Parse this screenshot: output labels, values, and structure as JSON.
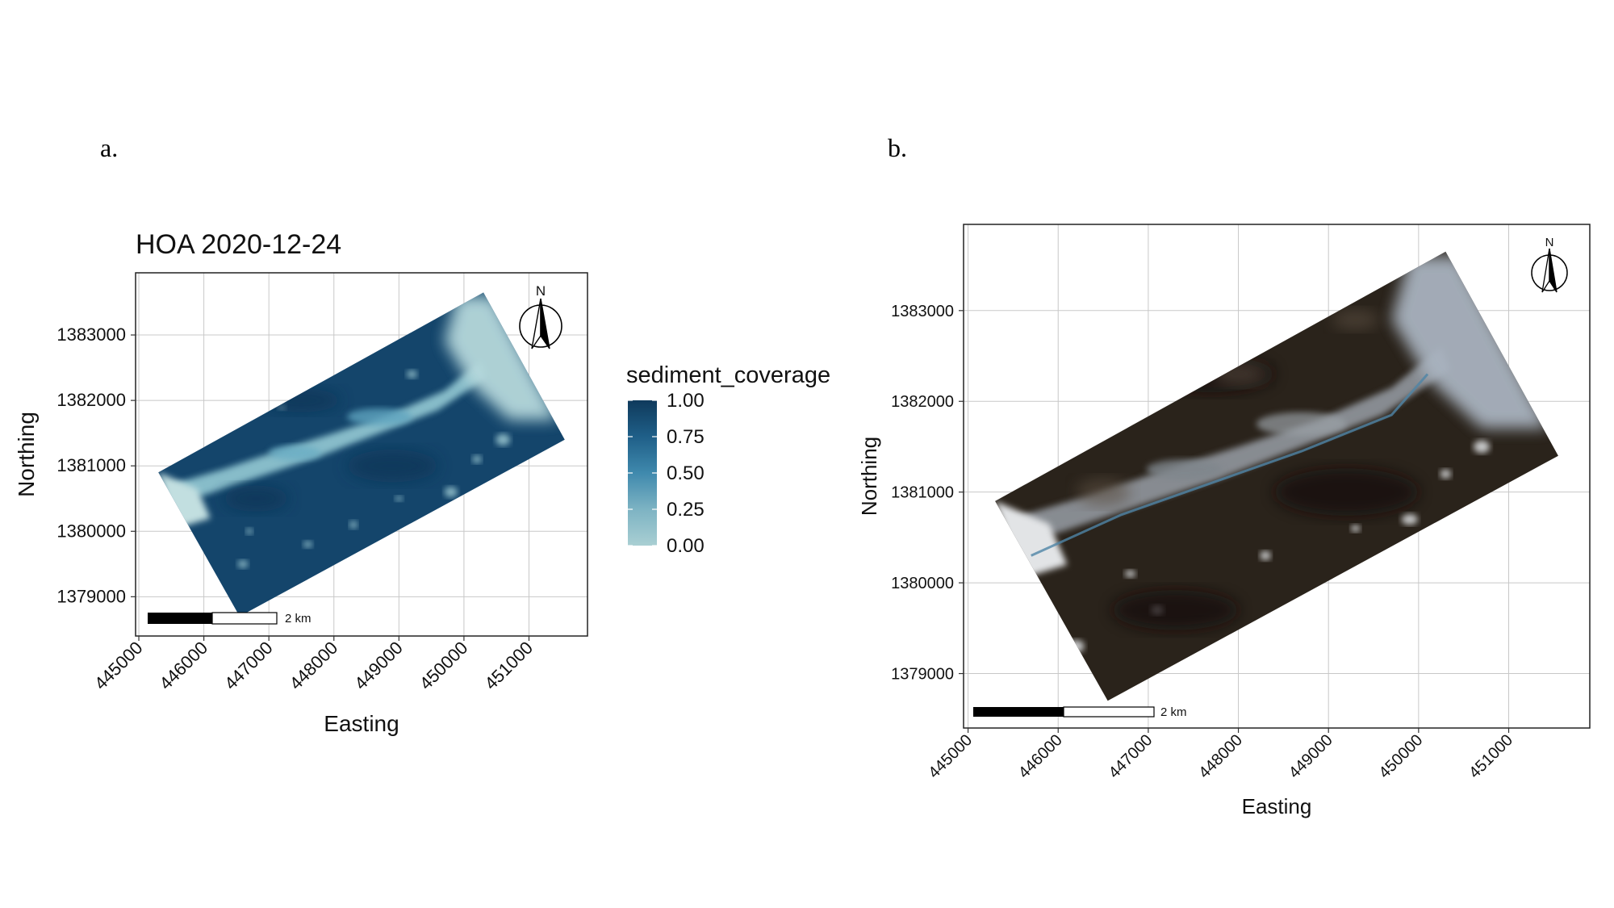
{
  "figure": {
    "panel_a_label": "a.",
    "panel_b_label": "b."
  },
  "chart_data": [
    {
      "type": "heatmap",
      "panel": "a.",
      "title": "HOA 2020-12-24",
      "xlabel": "Easting",
      "ylabel": "Northing",
      "x_ticks": [
        445000,
        446000,
        447000,
        448000,
        449000,
        450000,
        451000
      ],
      "y_ticks": [
        1379000,
        1380000,
        1381000,
        1382000,
        1383000
      ],
      "xlim": [
        444950,
        451900
      ],
      "ylim": [
        1378400,
        1383950
      ],
      "grid": true,
      "legend": {
        "title": "sediment_coverage",
        "position": "right",
        "ticks": [
          "1.00",
          "0.75",
          "0.50",
          "0.25",
          "0.00"
        ],
        "range": [
          0,
          1
        ],
        "colors": [
          "#a9cfd3",
          "#7db3c3",
          "#3f89ad",
          "#1f5f88",
          "#0f3a5c"
        ]
      },
      "scale_bar": "2 km",
      "north_arrow": "N",
      "footprint_corners": [
        [
          445300,
          1380900
        ],
        [
          450300,
          1383650
        ],
        [
          451550,
          1381400
        ],
        [
          446550,
          1378700
        ]
      ]
    },
    {
      "type": "heatmap",
      "panel": "b.",
      "title": "",
      "xlabel": "Easting",
      "ylabel": "Northing",
      "x_ticks": [
        445000,
        446000,
        447000,
        448000,
        449000,
        450000,
        451000
      ],
      "y_ticks": [
        1379000,
        1380000,
        1381000,
        1382000,
        1383000
      ],
      "xlim": [
        444950,
        451900
      ],
      "ylim": [
        1378400,
        1383950
      ],
      "grid": true,
      "scale_bar": "2 km",
      "north_arrow": "N",
      "footprint_corners": [
        [
          445300,
          1380900
        ],
        [
          450300,
          1383650
        ],
        [
          451550,
          1381400
        ],
        [
          446550,
          1378700
        ]
      ]
    }
  ]
}
